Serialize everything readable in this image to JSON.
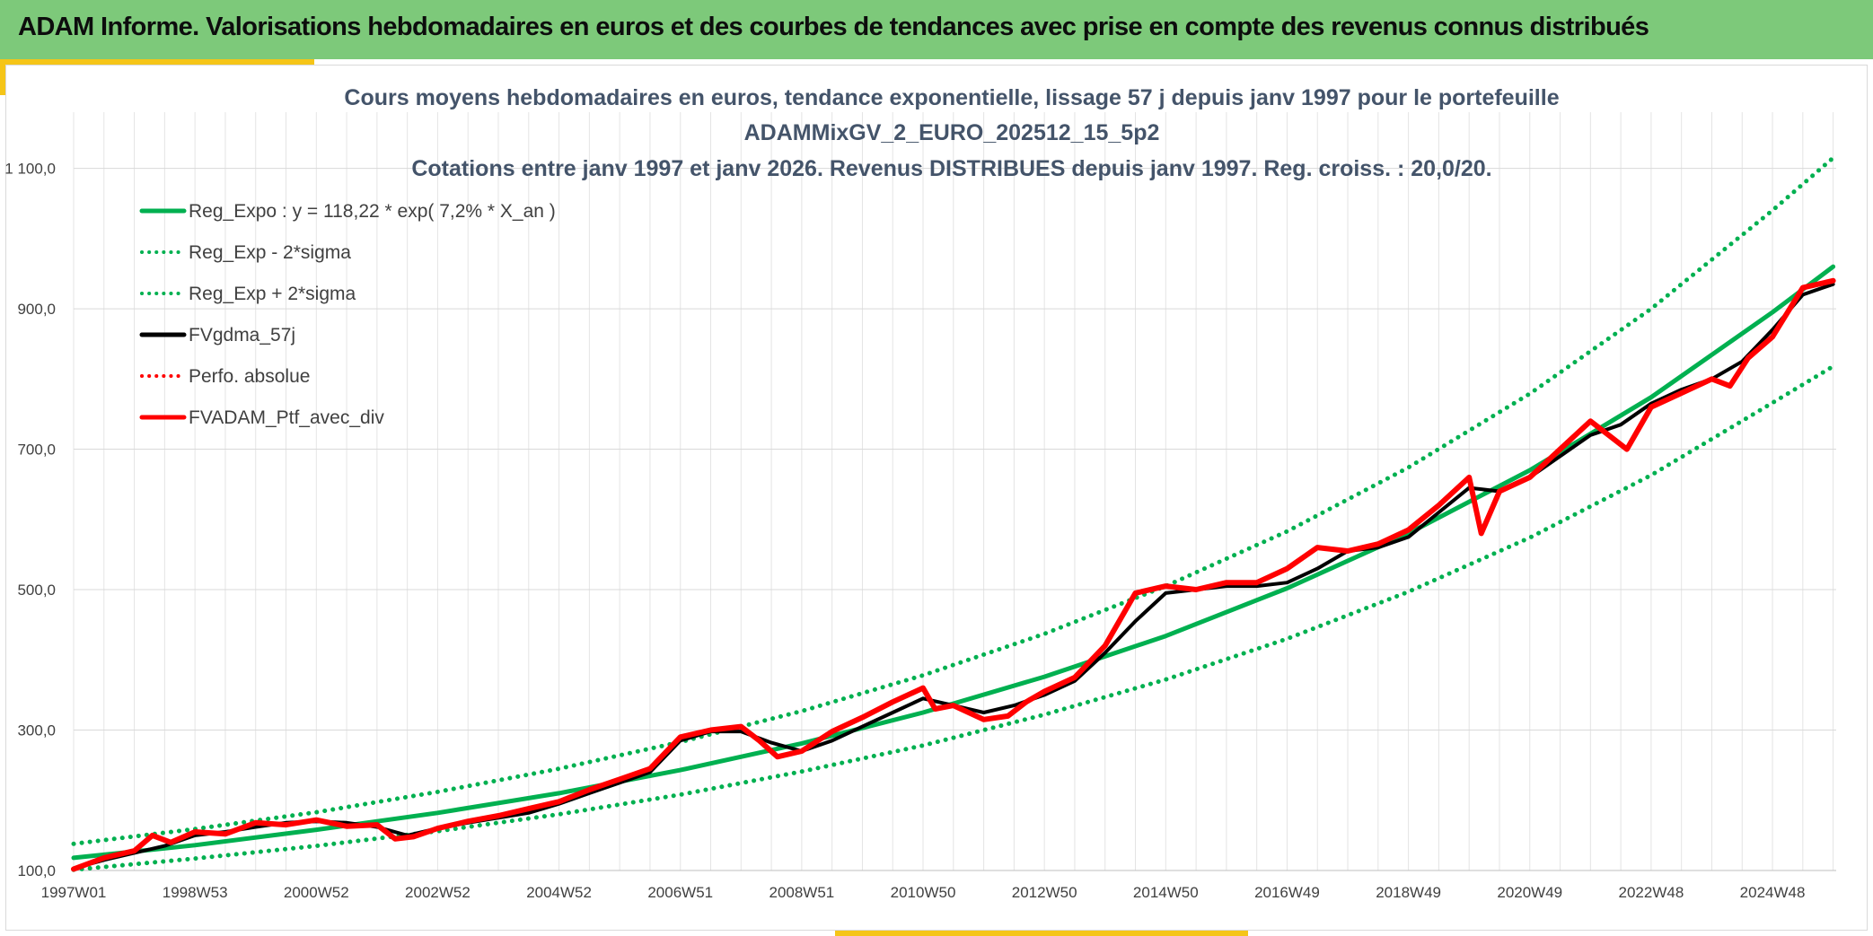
{
  "header": {
    "title": "ADAM Informe. Valorisations hebdomadaires en euros et des courbes de tendances avec prise en compte des revenus connus distribués"
  },
  "colors": {
    "banner": "#7dc97a",
    "accent": "#f5c518",
    "trend": "#00b050",
    "smooth": "#000000",
    "portfolio": "#ff0000"
  },
  "chart_data": {
    "type": "line",
    "title_lines": [
      "Cours moyens hebdomadaires en euros, tendance exponentielle, lissage 57 j depuis janv 1997 pour le portefeuille",
      "ADAMMixGV_2_EURO_202512_15_5p2",
      "Cotations entre janv 1997 et janv 2026. Revenus DISTRIBUES depuis janv 1997. Reg. croiss. : 20,0/20."
    ],
    "x_range": [
      1997.0,
      2026.05
    ],
    "ylim": [
      100,
      1180
    ],
    "y_ticks": [
      100,
      300,
      500,
      700,
      900,
      1100
    ],
    "y_tick_labels": [
      "100,0",
      "300,0",
      "500,0",
      "700,0",
      "900,0",
      "1 100,0"
    ],
    "x_ticks": [
      1997.0,
      1999.0,
      2001.0,
      2003.0,
      2005.0,
      2007.0,
      2009.0,
      2011.0,
      2013.0,
      2015.0,
      2017.0,
      2019.0,
      2021.0,
      2023.0,
      2025.0
    ],
    "x_tick_labels": [
      "1997W01",
      "1998W53",
      "2000W52",
      "2002W52",
      "2004W52",
      "2006W51",
      "2008W51",
      "2010W50",
      "2012W50",
      "2014W50",
      "2016W49",
      "2018W49",
      "2020W49",
      "2022W48",
      "2024W48"
    ],
    "grid": true,
    "legend_position": "top-left",
    "series": [
      {
        "name": "Reg_Expo : y = 118,22 * exp( 7,2% *  X_an )",
        "style": "solid",
        "color": "#00b050",
        "x": [
          1997,
          1999,
          2001,
          2003,
          2005,
          2007,
          2009,
          2011,
          2013,
          2015,
          2017,
          2019,
          2021,
          2023,
          2025,
          2026
        ],
        "y": [
          118,
          136,
          158,
          182,
          210,
          243,
          281,
          325,
          376,
          434,
          502,
          580,
          670,
          774,
          895,
          960
        ]
      },
      {
        "name": "Reg_Exp - 2*sigma",
        "style": "dotted",
        "color": "#00b050",
        "x": [
          1997,
          1999,
          2001,
          2003,
          2005,
          2007,
          2009,
          2011,
          2013,
          2015,
          2017,
          2019,
          2021,
          2023,
          2025,
          2026
        ],
        "y": [
          101,
          117,
          135,
          156,
          180,
          208,
          241,
          278,
          322,
          372,
          430,
          497,
          574,
          663,
          766,
          818
        ]
      },
      {
        "name": "Reg_Exp + 2*sigma",
        "style": "dotted",
        "color": "#00b050",
        "x": [
          1997,
          1999,
          2001,
          2003,
          2005,
          2007,
          2009,
          2011,
          2013,
          2015,
          2017,
          2019,
          2021,
          2023,
          2025,
          2026
        ],
        "y": [
          138,
          159,
          183,
          212,
          245,
          283,
          327,
          378,
          437,
          505,
          583,
          674,
          779,
          900,
          1040,
          1115
        ]
      },
      {
        "name": "FVgdma_57j",
        "style": "solid",
        "color": "#000000",
        "x": [
          1997,
          1997.5,
          1998,
          1998.5,
          1999,
          1999.5,
          2000,
          2000.5,
          2001,
          2001.5,
          2002,
          2002.5,
          2003,
          2003.5,
          2004,
          2004.5,
          2005,
          2005.5,
          2006,
          2006.5,
          2007,
          2007.5,
          2008,
          2008.5,
          2009,
          2009.5,
          2010,
          2010.5,
          2011,
          2011.5,
          2012,
          2012.5,
          2013,
          2013.5,
          2014,
          2014.5,
          2015,
          2015.5,
          2016,
          2016.5,
          2017,
          2017.5,
          2018,
          2018.5,
          2019,
          2019.5,
          2020,
          2020.5,
          2021,
          2021.5,
          2022,
          2022.5,
          2023,
          2023.5,
          2024,
          2024.5,
          2025,
          2025.5,
          2026
        ],
        "y": [
          103,
          115,
          125,
          135,
          150,
          155,
          162,
          168,
          170,
          168,
          162,
          150,
          160,
          168,
          175,
          182,
          195,
          210,
          225,
          240,
          285,
          298,
          298,
          282,
          270,
          285,
          305,
          325,
          345,
          335,
          325,
          335,
          350,
          370,
          410,
          455,
          495,
          500,
          505,
          505,
          510,
          530,
          555,
          560,
          575,
          610,
          645,
          640,
          660,
          690,
          720,
          735,
          765,
          785,
          800,
          825,
          870,
          920,
          935
        ]
      },
      {
        "name": "Perfo. absolue",
        "style": "dotted",
        "color": "#ff0000",
        "x": [],
        "y": []
      },
      {
        "name": "FVADAM_Ptf_avec_div",
        "style": "solid",
        "color": "#ff0000",
        "x": [
          1997,
          1997.5,
          1998,
          1998.3,
          1998.6,
          1999,
          1999.5,
          2000,
          2000.5,
          2001,
          2001.5,
          2002,
          2002.3,
          2002.6,
          2003,
          2003.5,
          2004,
          2004.5,
          2005,
          2005.5,
          2006,
          2006.5,
          2007,
          2007.5,
          2008,
          2008.3,
          2008.6,
          2009,
          2009.5,
          2010,
          2010.5,
          2011,
          2011.2,
          2011.5,
          2012,
          2012.4,
          2012.7,
          2013,
          2013.5,
          2014,
          2014.5,
          2015,
          2015.5,
          2016,
          2016.5,
          2017,
          2017.5,
          2018,
          2018.5,
          2019,
          2019.5,
          2020,
          2020.2,
          2020.5,
          2021,
          2021.5,
          2022,
          2022.3,
          2022.6,
          2023,
          2023.5,
          2024,
          2024.3,
          2024.6,
          2025,
          2025.5,
          2026
        ],
        "y": [
          102,
          118,
          128,
          150,
          140,
          155,
          152,
          168,
          165,
          172,
          163,
          165,
          145,
          148,
          160,
          170,
          178,
          188,
          198,
          215,
          230,
          245,
          290,
          300,
          305,
          285,
          262,
          270,
          298,
          318,
          340,
          360,
          330,
          335,
          315,
          320,
          340,
          355,
          375,
          420,
          495,
          505,
          500,
          510,
          510,
          530,
          560,
          555,
          565,
          585,
          620,
          660,
          580,
          640,
          660,
          700,
          740,
          720,
          700,
          760,
          780,
          800,
          790,
          830,
          860,
          930,
          940
        ]
      }
    ]
  }
}
